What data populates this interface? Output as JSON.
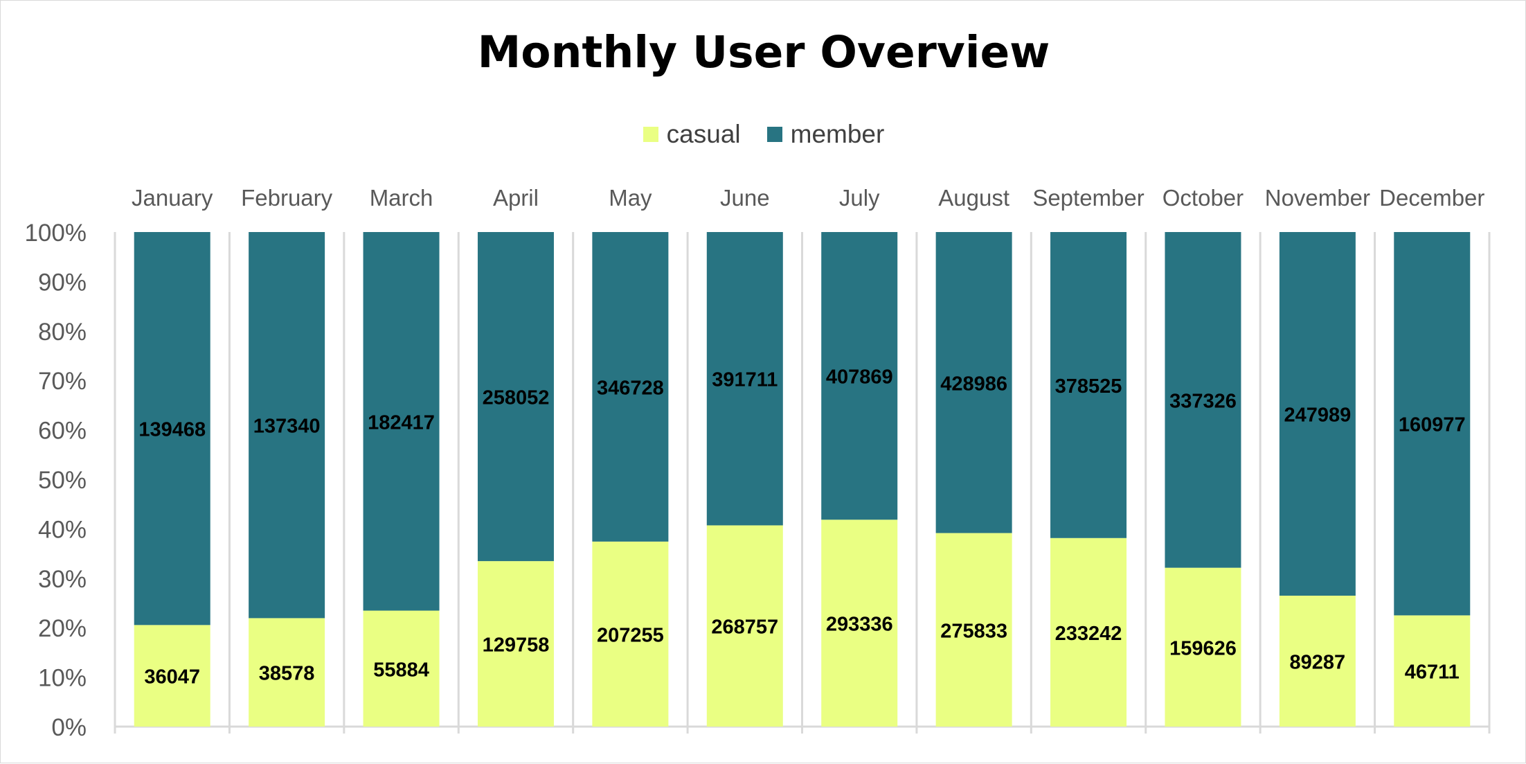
{
  "chart_data": {
    "type": "bar",
    "stacked": true,
    "normalized": true,
    "title": "Monthly User Overview",
    "categories": [
      "January",
      "February",
      "March",
      "April",
      "May",
      "June",
      "July",
      "August",
      "September",
      "October",
      "November",
      "December"
    ],
    "series": [
      {
        "name": "casual",
        "color": "#eaff83",
        "values": [
          36047,
          38578,
          55884,
          129758,
          207255,
          268757,
          293336,
          275833,
          233242,
          159626,
          89287,
          46711
        ]
      },
      {
        "name": "member",
        "color": "#287482",
        "values": [
          139468,
          137340,
          182417,
          258052,
          346728,
          391711,
          407869,
          428986,
          378525,
          337326,
          247989,
          160977
        ]
      }
    ],
    "yticks": [
      "0%",
      "10%",
      "20%",
      "30%",
      "40%",
      "50%",
      "60%",
      "70%",
      "80%",
      "90%",
      "100%"
    ],
    "ylim": [
      0,
      1
    ],
    "legend_position": "top",
    "category_labels_position": "top",
    "grid": "vertical-separators"
  }
}
